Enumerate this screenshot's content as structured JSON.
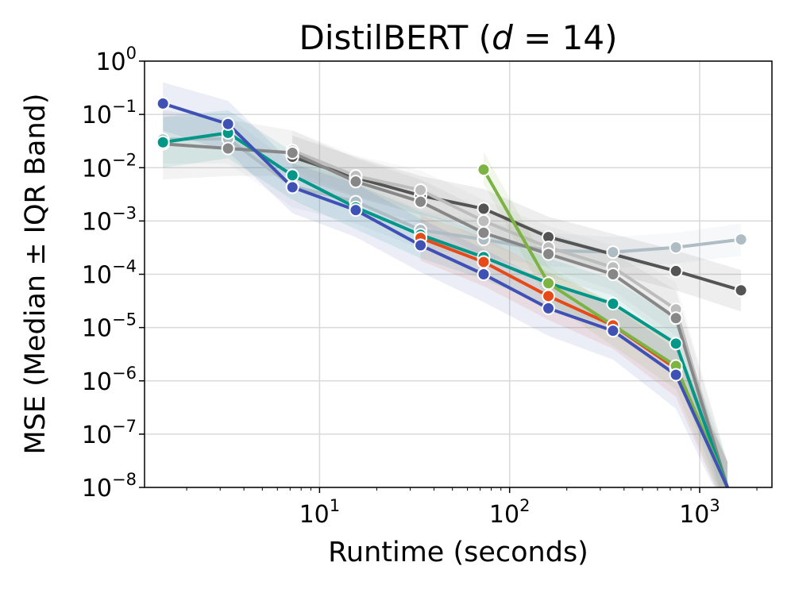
{
  "chart_data": {
    "type": "line",
    "title": "DistilBERT (d = 14)",
    "title_parts": {
      "prefix": "DistilBERT (",
      "var": "d",
      "suffix": " = 14)"
    },
    "xlabel": "Runtime (seconds)",
    "ylabel": "MSE (Median ± IQR Band)",
    "x_scale": "log",
    "y_scale": "log",
    "xlim": [
      1.2,
      2400
    ],
    "ylim": [
      1e-08,
      1
    ],
    "x_ticks": [
      {
        "value": 10,
        "base": "10",
        "exp": "1"
      },
      {
        "value": 100,
        "base": "10",
        "exp": "2"
      },
      {
        "value": 1000,
        "base": "10",
        "exp": "3"
      }
    ],
    "y_ticks": [
      {
        "value": 1,
        "base": "10",
        "exp": "0"
      },
      {
        "value": 0.1,
        "base": "10",
        "exp": "−1"
      },
      {
        "value": 0.01,
        "base": "10",
        "exp": "−2"
      },
      {
        "value": 0.001,
        "base": "10",
        "exp": "−3"
      },
      {
        "value": 0.0001,
        "base": "10",
        "exp": "−4"
      },
      {
        "value": 1e-05,
        "base": "10",
        "exp": "−5"
      },
      {
        "value": 1e-06,
        "base": "10",
        "exp": "−6"
      },
      {
        "value": 1e-07,
        "base": "10",
        "exp": "−7"
      },
      {
        "value": 1e-08,
        "base": "10",
        "exp": "−8"
      }
    ],
    "grid": true,
    "series": [
      {
        "color": "#aebdc4",
        "points": [
          [
            1.5,
            0.034
          ],
          [
            3.3,
            0.035
          ],
          [
            7.2,
            0.0045
          ],
          [
            15.5,
            0.0023
          ],
          [
            34,
            0.00068
          ],
          [
            73,
            0.00045
          ],
          [
            160,
            0.00028
          ],
          [
            350,
            0.00026
          ],
          [
            750,
            0.00032
          ],
          [
            1650,
            0.00045
          ]
        ],
        "band_low": [
          0.012,
          0.012,
          0.0018,
          0.0009,
          0.0003,
          0.00022,
          0.00014,
          0.00013,
          0.00016,
          0.00022
        ],
        "band_high": [
          0.09,
          0.09,
          0.012,
          0.006,
          0.0016,
          0.001,
          0.0006,
          0.0005,
          0.0006,
          0.0009
        ]
      },
      {
        "color": "#545454",
        "points": [
          [
            7.2,
            0.016
          ],
          [
            15.5,
            0.0065
          ],
          [
            34,
            0.003
          ],
          [
            73,
            0.0017
          ],
          [
            160,
            0.0005
          ],
          [
            750,
            0.000115
          ],
          [
            1650,
            5e-05
          ]
        ],
        "band_low": [
          0.007,
          0.0028,
          0.0013,
          0.0007,
          0.00022,
          5e-05,
          2e-05
        ],
        "band_high": [
          0.04,
          0.016,
          0.007,
          0.004,
          0.0012,
          0.00028,
          0.00012
        ]
      },
      {
        "color": "#bdbdbd",
        "points": [
          [
            7.2,
            0.021
          ],
          [
            15.5,
            0.007
          ],
          [
            34,
            0.0038
          ],
          [
            73,
            0.001
          ],
          [
            160,
            0.00032
          ],
          [
            350,
            0.000135
          ],
          [
            750,
            2.2e-05
          ],
          [
            1400,
            1e-08
          ]
        ],
        "band_low": [
          0.009,
          0.003,
          0.0016,
          0.0004,
          0.00013,
          5e-05,
          7e-06,
          3e-09
        ],
        "band_high": [
          0.05,
          0.017,
          0.009,
          0.0025,
          0.0008,
          0.00035,
          7e-05,
          3e-08
        ]
      },
      {
        "color": "#878787",
        "points": [
          [
            1.5,
            0.028
          ],
          [
            3.3,
            0.023
          ],
          [
            7.2,
            0.019
          ],
          [
            15.5,
            0.0055
          ],
          [
            34,
            0.0023
          ],
          [
            73,
            0.0006
          ],
          [
            160,
            0.00024
          ],
          [
            350,
            0.0001
          ],
          [
            750,
            1.5e-05
          ],
          [
            1400,
            1e-08
          ]
        ],
        "band_low": [
          0.006,
          0.007,
          0.007,
          0.002,
          0.0009,
          0.00022,
          9e-05,
          4e-05,
          5e-06,
          3e-09
        ],
        "band_high": [
          0.12,
          0.08,
          0.05,
          0.015,
          0.006,
          0.0016,
          0.0006,
          0.00025,
          5e-05,
          3e-08
        ]
      },
      {
        "color": "#009688",
        "points": [
          [
            1.5,
            0.03
          ],
          [
            3.3,
            0.045
          ],
          [
            7.2,
            0.0072
          ],
          [
            15.5,
            0.0018
          ],
          [
            34,
            0.00055
          ],
          [
            73,
            0.00021
          ],
          [
            160,
            6.8e-05
          ],
          [
            350,
            2.8e-05
          ],
          [
            750,
            5e-06
          ],
          [
            1400,
            1e-08
          ]
        ],
        "band_low": [
          0.01,
          0.015,
          0.0025,
          0.0007,
          0.0002,
          8e-05,
          2.5e-05,
          1e-05,
          1.5e-06,
          3e-09
        ],
        "band_high": [
          0.09,
          0.12,
          0.02,
          0.005,
          0.0015,
          0.0006,
          0.0002,
          8e-05,
          1.5e-05,
          3e-08
        ]
      },
      {
        "color": "#e64a19",
        "points": [
          [
            34,
            0.00048
          ],
          [
            73,
            0.00017
          ],
          [
            160,
            3.9e-05
          ],
          [
            350,
            1.1e-05
          ],
          [
            750,
            1.7e-06
          ],
          [
            1400,
            1e-08
          ]
        ],
        "band_low": [
          0.00018,
          6e-05,
          1.4e-05,
          4e-06,
          5e-07,
          3e-09
        ],
        "band_high": [
          0.0013,
          0.0005,
          0.00011,
          3e-05,
          5e-06,
          3e-08
        ]
      },
      {
        "color": "#7cb342",
        "points": [
          [
            73,
            0.0092
          ],
          [
            160,
            6.8e-05
          ],
          [
            750,
            1.9e-06
          ],
          [
            1400,
            1e-08
          ]
        ],
        "band_low": [
          0.005,
          3e-05,
          7e-07,
          3e-09
        ],
        "band_high": [
          0.02,
          0.00014,
          5e-06,
          3e-08
        ]
      },
      {
        "color": "#3f51b5",
        "points": [
          [
            1.5,
            0.16
          ],
          [
            3.3,
            0.066
          ],
          [
            7.2,
            0.0043
          ],
          [
            15.5,
            0.0016
          ],
          [
            34,
            0.00035
          ],
          [
            73,
            0.0001
          ],
          [
            160,
            2.3e-05
          ],
          [
            350,
            8.7e-06
          ],
          [
            750,
            1.3e-06
          ],
          [
            1400,
            1e-08
          ]
        ],
        "band_low": [
          0.05,
          0.02,
          0.0014,
          0.0005,
          0.00011,
          3e-05,
          7e-06,
          2.5e-06,
          3e-07,
          3e-09
        ],
        "band_high": [
          0.4,
          0.18,
          0.012,
          0.005,
          0.0011,
          0.0003,
          7e-05,
          2.5e-05,
          4e-06,
          3e-08
        ]
      }
    ]
  }
}
